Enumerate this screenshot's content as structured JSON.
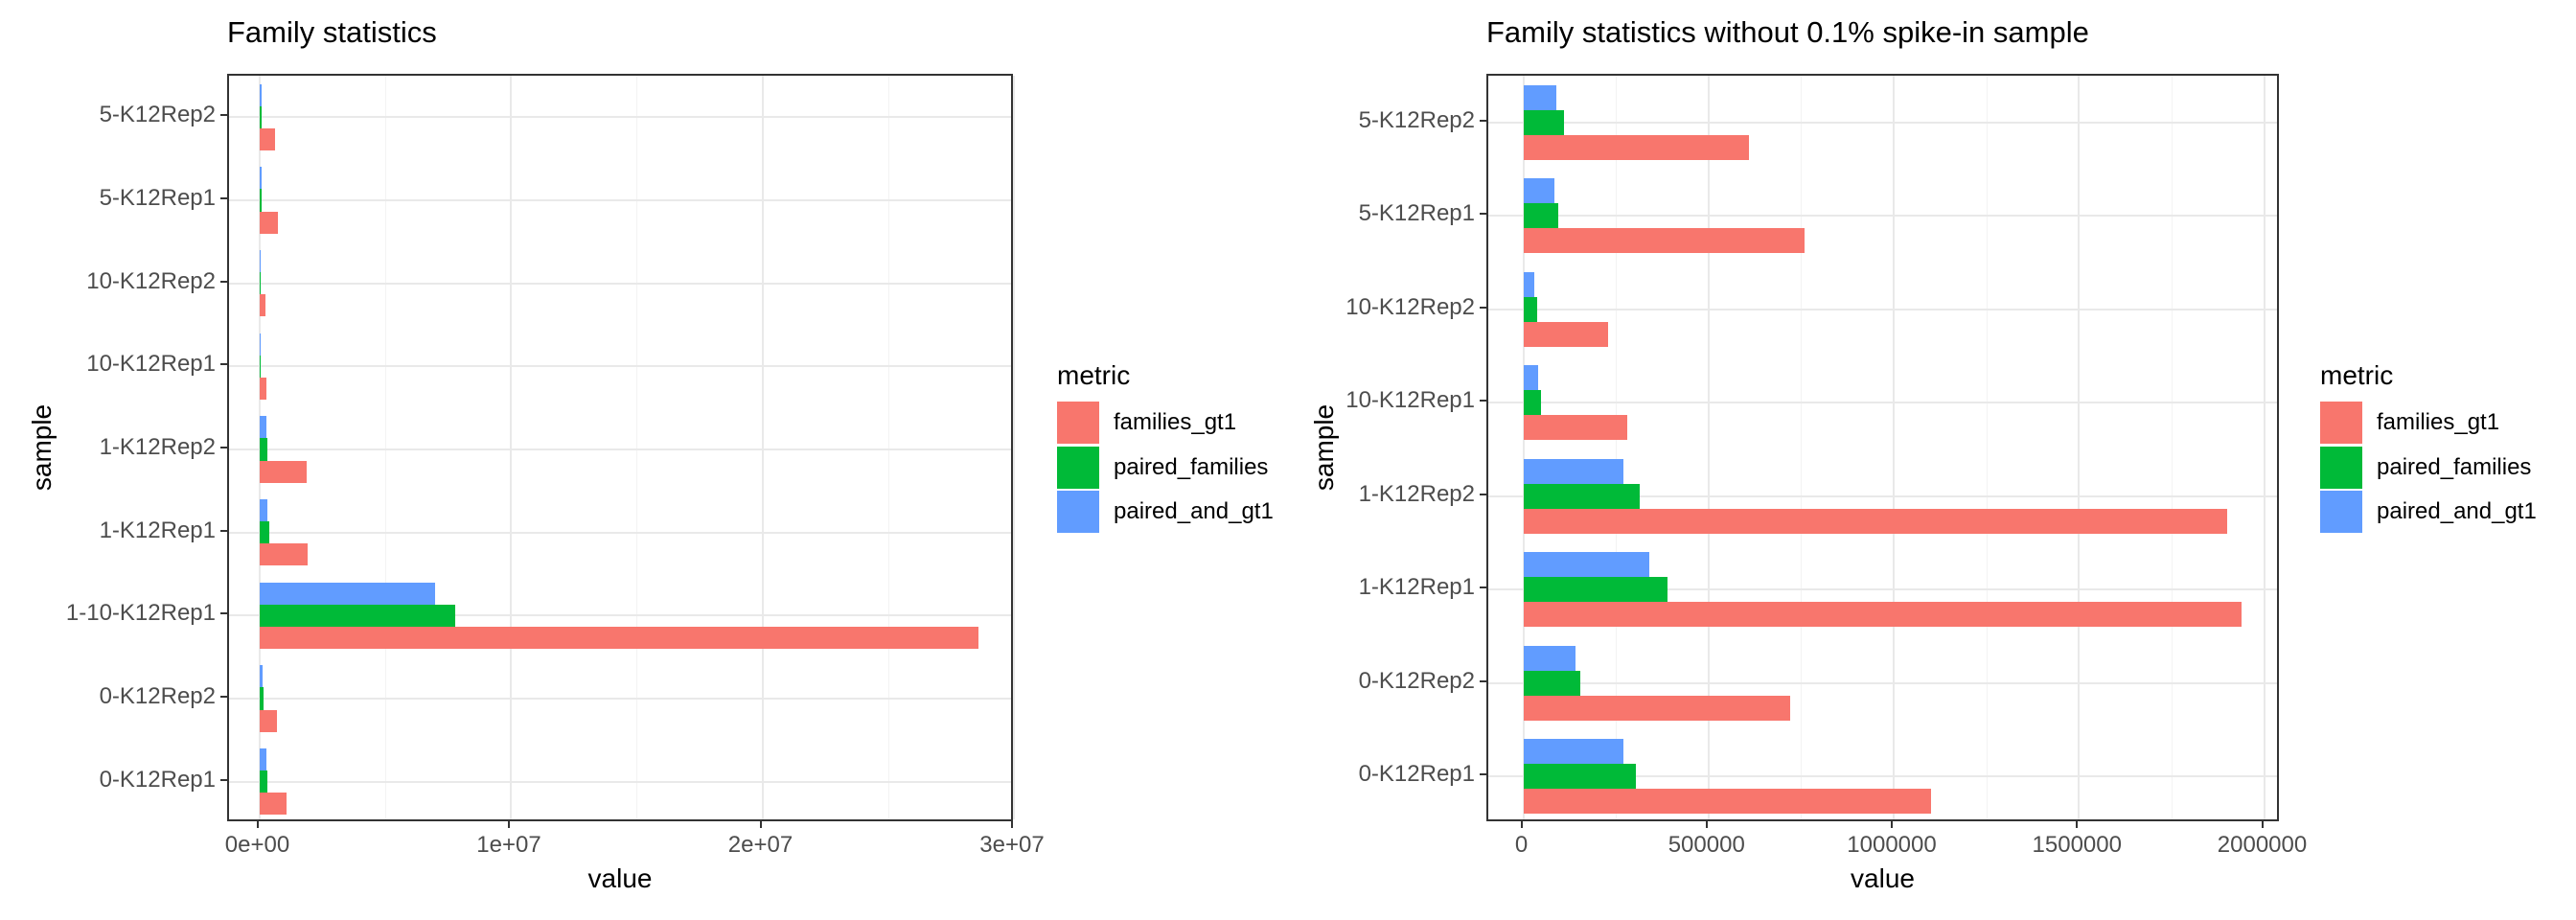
{
  "page": {
    "background": "#ffffff"
  },
  "legend": {
    "title": "metric",
    "entries": [
      {
        "label": "families_gt1",
        "color": "#F8766D"
      },
      {
        "label": "paired_families",
        "color": "#00BA38"
      },
      {
        "label": "paired_and_gt1",
        "color": "#619CFF"
      }
    ]
  },
  "chart_data": [
    {
      "type": "bar",
      "orientation": "horizontal",
      "title": "Family statistics",
      "xlabel": "value",
      "ylabel": "sample",
      "legend_title": "metric",
      "legend_position": "right",
      "grid": true,
      "xlim": [
        0,
        30000000
      ],
      "x_ticks": [
        0,
        10000000,
        20000000,
        30000000
      ],
      "x_tick_labels": [
        "0e+00",
        "1e+07",
        "2e+07",
        "3e+07"
      ],
      "x_minor_ticks": [
        5000000,
        15000000,
        25000000
      ],
      "categories_top_to_bottom": [
        "5-K12Rep2",
        "5-K12Rep1",
        "10-K12Rep2",
        "10-K12Rep1",
        "1-K12Rep2",
        "1-K12Rep1",
        "1-10-K12Rep1",
        "0-K12Rep2",
        "0-K12Rep1"
      ],
      "series": [
        {
          "name": "families_gt1",
          "color": "#F8766D",
          "values": [
            610000,
            760000,
            230000,
            280000,
            1900000,
            1940000,
            28600000,
            720000,
            1100000
          ]
        },
        {
          "name": "paired_families",
          "color": "#00BA38",
          "values": [
            110000,
            95000,
            37000,
            47000,
            315000,
            390000,
            7800000,
            155000,
            305000
          ]
        },
        {
          "name": "paired_and_gt1",
          "color": "#619CFF",
          "values": [
            90000,
            85000,
            30000,
            40000,
            270000,
            340000,
            7000000,
            140000,
            270000
          ]
        }
      ]
    },
    {
      "type": "bar",
      "orientation": "horizontal",
      "title": "Family statistics without 0.1% spike-in sample",
      "xlabel": "value",
      "ylabel": "sample",
      "legend_title": "metric",
      "legend_position": "right",
      "grid": true,
      "xlim": [
        0,
        2000000
      ],
      "x_ticks": [
        0,
        500000,
        1000000,
        1500000,
        2000000
      ],
      "x_tick_labels": [
        "0",
        "500000",
        "1000000",
        "1500000",
        "2000000"
      ],
      "x_minor_ticks": [
        250000,
        750000,
        1250000,
        1750000
      ],
      "categories_top_to_bottom": [
        "5-K12Rep2",
        "5-K12Rep1",
        "10-K12Rep2",
        "10-K12Rep1",
        "1-K12Rep2",
        "1-K12Rep1",
        "0-K12Rep2",
        "0-K12Rep1"
      ],
      "series": [
        {
          "name": "families_gt1",
          "color": "#F8766D",
          "values": [
            610000,
            760000,
            230000,
            280000,
            1900000,
            1940000,
            720000,
            1100000
          ]
        },
        {
          "name": "paired_families",
          "color": "#00BA38",
          "values": [
            110000,
            95000,
            37000,
            47000,
            315000,
            390000,
            155000,
            305000
          ]
        },
        {
          "name": "paired_and_gt1",
          "color": "#619CFF",
          "values": [
            90000,
            85000,
            30000,
            40000,
            270000,
            340000,
            140000,
            270000
          ]
        }
      ]
    }
  ]
}
